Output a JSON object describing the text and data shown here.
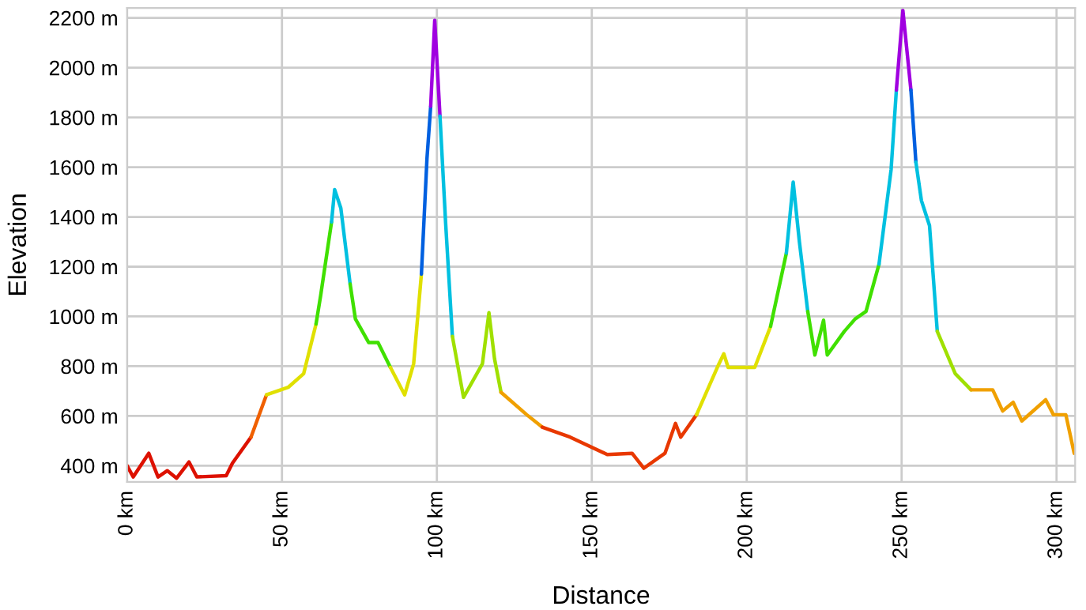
{
  "chart_data": {
    "type": "line",
    "xlabel": "Distance",
    "ylabel": "Elevation",
    "xlim": [
      0,
      306
    ],
    "ylim": [
      335,
      2240
    ],
    "xticks": [
      {
        "value": 0,
        "label": "0 km"
      },
      {
        "value": 50,
        "label": "50 km"
      },
      {
        "value": 100,
        "label": "100 km"
      },
      {
        "value": 150,
        "label": "150 km"
      },
      {
        "value": 200,
        "label": "200 km"
      },
      {
        "value": 250,
        "label": "250 km"
      },
      {
        "value": 300,
        "label": "300 km"
      }
    ],
    "yticks": [
      {
        "value": 400,
        "label": "400 m"
      },
      {
        "value": 600,
        "label": "600 m"
      },
      {
        "value": 800,
        "label": "800 m"
      },
      {
        "value": 1000,
        "label": "1000 m"
      },
      {
        "value": 1200,
        "label": "1200 m"
      },
      {
        "value": 1400,
        "label": "1400 m"
      },
      {
        "value": 1600,
        "label": "1600 m"
      },
      {
        "value": 1800,
        "label": "1800 m"
      },
      {
        "value": 2000,
        "label": "2000 m"
      },
      {
        "value": 2200,
        "label": "2200 m"
      }
    ],
    "grid": true,
    "series": [
      {
        "color": "#dd1100",
        "x": [
          0,
          2,
          7,
          10,
          13,
          16,
          20,
          22.5,
          32,
          34,
          40
        ],
        "values": [
          400,
          355,
          450,
          355,
          380,
          350,
          415,
          355,
          360,
          410,
          515
        ]
      },
      {
        "color": "#f06000",
        "x": [
          40,
          45
        ],
        "values": [
          515,
          685
        ]
      },
      {
        "color": "#e0e000",
        "x": [
          45,
          52,
          57,
          61
        ],
        "values": [
          685,
          715,
          770,
          970
        ]
      },
      {
        "color": "#40e000",
        "x": [
          61,
          62.5,
          66
        ],
        "values": [
          970,
          1085,
          1380
        ]
      },
      {
        "color": "#00c0e0",
        "x": [
          66,
          67,
          69,
          72
        ],
        "values": [
          1380,
          1510,
          1435,
          1130
        ]
      },
      {
        "color": "#40e000",
        "x": [
          72,
          73.7,
          78,
          81,
          85
        ],
        "values": [
          1130,
          990,
          895,
          895,
          795
        ]
      },
      {
        "color": "#e0e000",
        "x": [
          85,
          89.6,
          92.5,
          95
        ],
        "values": [
          795,
          685,
          810,
          1170
        ]
      },
      {
        "color": "#0060e0",
        "x": [
          95,
          96.8,
          98
        ],
        "values": [
          1170,
          1635,
          1845
        ]
      },
      {
        "color": "#a000e0",
        "x": [
          98,
          99.3,
          101
        ],
        "values": [
          1845,
          2190,
          1805
        ]
      },
      {
        "color": "#00c0e0",
        "x": [
          101,
          102.8,
          105
        ],
        "values": [
          1805,
          1380,
          920
        ]
      },
      {
        "color": "#a0e000",
        "x": [
          105,
          108.6,
          114.7,
          116.8,
          118.6,
          120.7
        ],
        "values": [
          920,
          675,
          810,
          1015,
          830,
          695
        ]
      },
      {
        "color": "#f0a000",
        "x": [
          120.7,
          129,
          134
        ],
        "values": [
          695,
          605,
          555
        ]
      },
      {
        "color": "#e83800",
        "x": [
          134,
          143,
          155,
          163,
          166.8,
          173.6,
          177,
          178.7,
          183.8
        ],
        "values": [
          555,
          515,
          445,
          450,
          390,
          450,
          570,
          515,
          605
        ]
      },
      {
        "color": "#e0e000",
        "x": [
          183.8,
          190.5,
          192.6,
          194,
          202.6,
          207.7
        ],
        "values": [
          605,
          795,
          850,
          795,
          795,
          960
        ]
      },
      {
        "color": "#40e000",
        "x": [
          207.7,
          212.8
        ],
        "values": [
          960,
          1255
        ]
      },
      {
        "color": "#00c0e0",
        "x": [
          212.8,
          215,
          217,
          219.7
        ],
        "values": [
          1255,
          1540,
          1300,
          1020
        ]
      },
      {
        "color": "#40e000",
        "x": [
          219.7,
          222,
          224.8,
          226,
          231.5,
          235,
          238.5,
          242.7
        ],
        "values": [
          1020,
          845,
          985,
          845,
          940,
          990,
          1020,
          1210
        ]
      },
      {
        "color": "#00c0e0",
        "x": [
          242.7,
          246.6,
          248.3
        ],
        "values": [
          1210,
          1590,
          1910
        ]
      },
      {
        "color": "#a000e0",
        "x": [
          248.3,
          250.4,
          253
        ],
        "values": [
          1910,
          2230,
          1910
        ]
      },
      {
        "color": "#0060e0",
        "x": [
          253,
          254.6
        ],
        "values": [
          1910,
          1620
        ]
      },
      {
        "color": "#00c0e0",
        "x": [
          254.6,
          256.4,
          259,
          261.5
        ],
        "values": [
          1620,
          1465,
          1365,
          940
        ]
      },
      {
        "color": "#a0e000",
        "x": [
          261.5,
          267.3,
          272.4
        ],
        "values": [
          940,
          770,
          705
        ]
      },
      {
        "color": "#f0a000",
        "x": [
          272.4,
          279.4,
          282.6,
          286,
          288.8,
          296.5,
          299,
          303,
          305.7
        ],
        "values": [
          705,
          705,
          620,
          655,
          580,
          665,
          605,
          605,
          450
        ]
      }
    ]
  }
}
